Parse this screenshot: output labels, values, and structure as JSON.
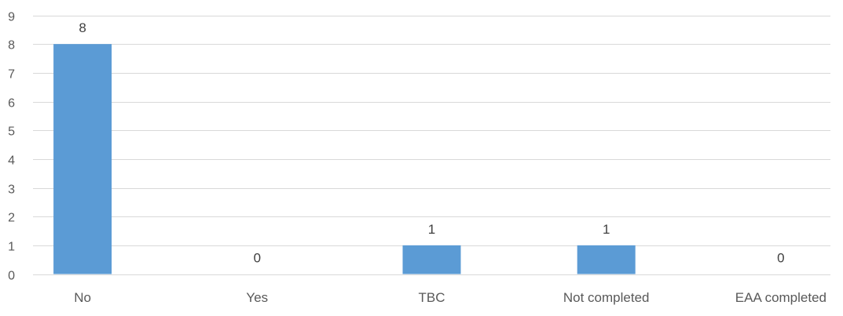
{
  "chart_data": {
    "type": "bar",
    "title": "",
    "xlabel": "",
    "ylabel": "",
    "categories": [
      "No",
      "Yes",
      "TBC",
      "Not completed",
      "EAA completed"
    ],
    "values": [
      8,
      0,
      1,
      1,
      0
    ],
    "data_labels": [
      "8",
      "0",
      "1",
      "1",
      "0"
    ],
    "yticks": [
      "0",
      "1",
      "2",
      "3",
      "4",
      "5",
      "6",
      "7",
      "8",
      "9"
    ],
    "ylim": [
      0,
      9
    ],
    "grid": true,
    "legend": "none",
    "colors": {
      "bar": "#5B9BD5",
      "grid": "#D9D9D9",
      "text": "#595959"
    }
  }
}
